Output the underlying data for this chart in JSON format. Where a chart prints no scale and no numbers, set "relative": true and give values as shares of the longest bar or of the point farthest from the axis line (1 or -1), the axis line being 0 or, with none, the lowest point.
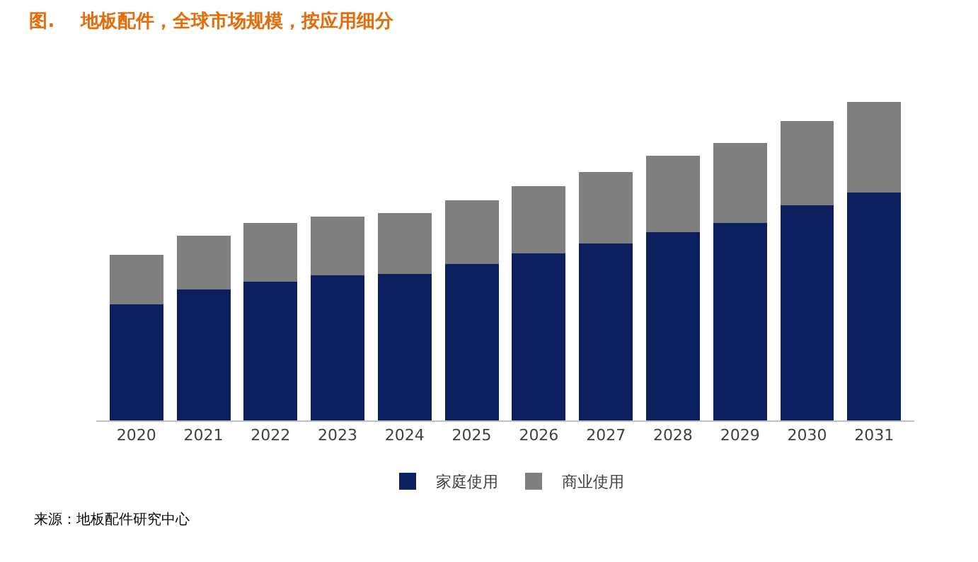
{
  "chart_data": {
    "type": "bar",
    "stacked": true,
    "relative": true,
    "title": "图.    地板配件，全球市场规模，按应用细分",
    "categories": [
      "2020",
      "2021",
      "2022",
      "2023",
      "2024",
      "2025",
      "2026",
      "2027",
      "2028",
      "2029",
      "2030",
      "2031"
    ],
    "series": [
      {
        "name": "家庭使用",
        "color": "#0c1f5e",
        "values": [
          0.365,
          0.41,
          0.435,
          0.455,
          0.46,
          0.49,
          0.525,
          0.555,
          0.59,
          0.62,
          0.675,
          0.715
        ]
      },
      {
        "name": "商业使用",
        "color": "#7f7f7f",
        "values": [
          0.155,
          0.17,
          0.185,
          0.185,
          0.19,
          0.2,
          0.21,
          0.225,
          0.24,
          0.25,
          0.265,
          0.285
        ]
      }
    ],
    "legend": "bottom",
    "annotations": [
      "来源：地板配件研究中心"
    ]
  }
}
